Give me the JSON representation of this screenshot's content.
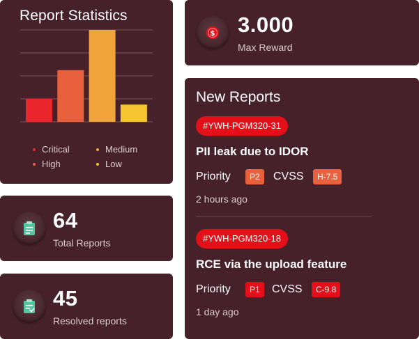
{
  "stats": {
    "title": "Report Statistics",
    "legend": [
      {
        "label": "Critical",
        "color": "#e8262c"
      },
      {
        "label": "Medium",
        "color": "#f0a43a"
      },
      {
        "label": "High",
        "color": "#e8613c"
      },
      {
        "label": "Low",
        "color": "#f7c531"
      }
    ]
  },
  "chart_data": {
    "type": "bar",
    "categories": [
      "Critical",
      "High",
      "Medium",
      "Low"
    ],
    "values": [
      8,
      18,
      32,
      6
    ],
    "colors": [
      "#e8262c",
      "#e8613c",
      "#f0a43a",
      "#f7c531"
    ],
    "ylim": [
      0,
      32
    ],
    "grid": true
  },
  "reward": {
    "value": "3.000",
    "label": "Max Reward",
    "icon": "dollar-coin-icon",
    "icon_color": "#e3101a"
  },
  "total": {
    "value": "64",
    "label": "Total Reports",
    "icon": "clipboard-icon",
    "icon_color": "#55c7a0"
  },
  "resolved": {
    "value": "45",
    "label": "Resolved reports",
    "icon": "clipboard-check-icon",
    "icon_color": "#55c7a0"
  },
  "new_reports": {
    "title": "New Reports",
    "priority_label": "Priority",
    "cvss_label": "CVSS",
    "items": [
      {
        "id": "#YWH-PGM320-31",
        "title": "PII leak due to IDOR",
        "priority": "P2",
        "cvss": "H-7.5",
        "tag_color": "#e8613c",
        "time": "2 hours ago"
      },
      {
        "id": "#YWH-PGM320-18",
        "title": "RCE via the upload feature",
        "priority": "P1",
        "cvss": "C-9.8",
        "tag_color": "#e3101a",
        "time": "1 day ago"
      }
    ]
  }
}
